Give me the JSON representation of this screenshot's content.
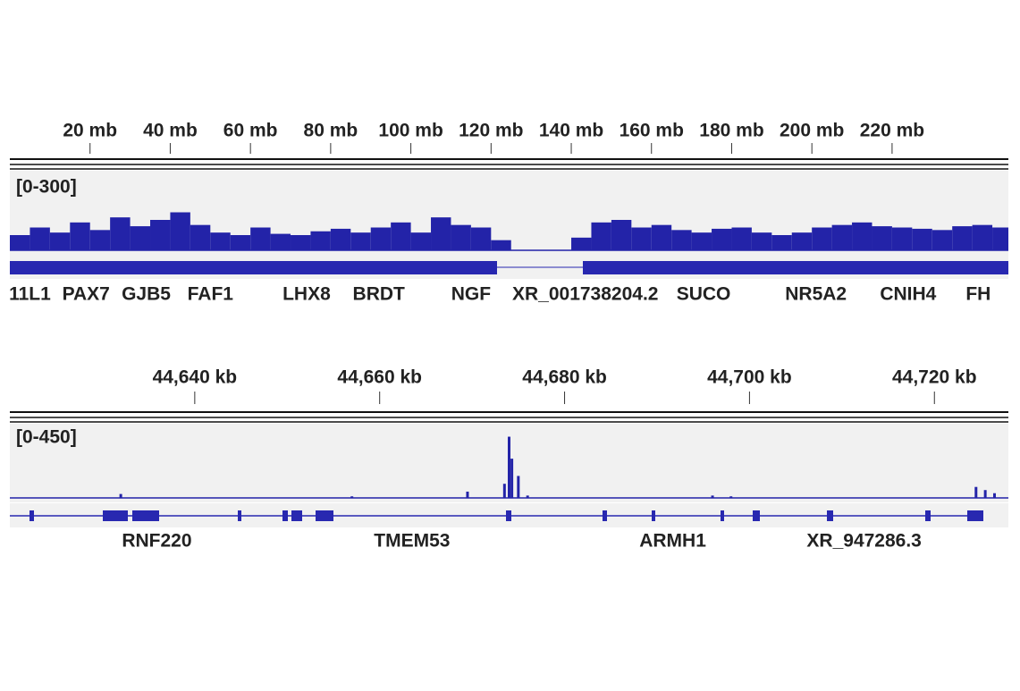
{
  "chart_data": [
    {
      "type": "histogram",
      "range_label": "[0-300]",
      "color": "#2323a8",
      "xlim": [
        0,
        249
      ],
      "ylim": [
        0,
        300
      ],
      "xticks": [
        {
          "value": 20,
          "label": "20 mb"
        },
        {
          "value": 40,
          "label": "40 mb"
        },
        {
          "value": 60,
          "label": "60 mb"
        },
        {
          "value": 80,
          "label": "80 mb"
        },
        {
          "value": 100,
          "label": "100 mb"
        },
        {
          "value": 120,
          "label": "120 mb"
        },
        {
          "value": 140,
          "label": "140 mb"
        },
        {
          "value": 160,
          "label": "160 mb"
        },
        {
          "value": 180,
          "label": "180 mb"
        },
        {
          "value": 200,
          "label": "200 mb"
        },
        {
          "value": 220,
          "label": "220 mb"
        }
      ],
      "bins": [
        0,
        5,
        10,
        15,
        20,
        25,
        30,
        35,
        40,
        45,
        50,
        55,
        60,
        65,
        70,
        75,
        80,
        85,
        90,
        95,
        100,
        105,
        110,
        115,
        120,
        125,
        130,
        135,
        140,
        145,
        150,
        155,
        160,
        165,
        170,
        175,
        180,
        185,
        190,
        195,
        200,
        205,
        210,
        215,
        220,
        225,
        230,
        235,
        240,
        245,
        249
      ],
      "values": [
        60,
        90,
        70,
        110,
        80,
        130,
        95,
        120,
        150,
        100,
        70,
        60,
        90,
        65,
        60,
        75,
        85,
        70,
        90,
        110,
        70,
        130,
        100,
        90,
        40,
        0,
        0,
        0,
        50,
        110,
        120,
        90,
        100,
        80,
        70,
        85,
        90,
        70,
        60,
        70,
        90,
        100,
        110,
        95,
        90,
        85,
        80,
        95,
        100,
        90
      ],
      "genes": [
        {
          "name": "11L1",
          "x": 5
        },
        {
          "name": "PAX7",
          "x": 19
        },
        {
          "name": "GJB5",
          "x": 34
        },
        {
          "name": "FAF1",
          "x": 50
        },
        {
          "name": "LHX8",
          "x": 74
        },
        {
          "name": "BRDT",
          "x": 92
        },
        {
          "name": "NGF",
          "x": 115
        },
        {
          "name": "XR_001738204.2",
          "x": 143.5
        },
        {
          "name": "SUCO",
          "x": 173
        },
        {
          "name": "NR5A2",
          "x": 201
        },
        {
          "name": "CNIH4",
          "x": 224
        },
        {
          "name": "FH",
          "x": 241.5
        }
      ]
    },
    {
      "type": "bar",
      "range_label": "[0-450]",
      "color": "#2323a8",
      "xlim": [
        44620,
        44728
      ],
      "ylim": [
        0,
        450
      ],
      "xticks": [
        {
          "value": 44640,
          "label": "44,640 kb"
        },
        {
          "value": 44660,
          "label": "44,660 kb"
        },
        {
          "value": 44680,
          "label": "44,680 kb"
        },
        {
          "value": 44700,
          "label": "44,700 kb"
        },
        {
          "value": 44720,
          "label": "44,720 kb"
        }
      ],
      "x": [
        44632,
        44657,
        44669.5,
        44673.5,
        44674,
        44674.3,
        44675,
        44676,
        44696,
        44698,
        44724.5,
        44725.5,
        44726.5
      ],
      "values": [
        25,
        10,
        40,
        90,
        390,
        250,
        140,
        15,
        15,
        10,
        70,
        50,
        30
      ],
      "genes": [
        {
          "name": "RNF220",
          "x": 44635.9
        },
        {
          "name": "TMEM53",
          "x": 44663.5
        },
        {
          "name": "ARMH1",
          "x": 44691.7
        },
        {
          "name": "XR_947286.3",
          "x": 44712.4
        }
      ]
    }
  ]
}
